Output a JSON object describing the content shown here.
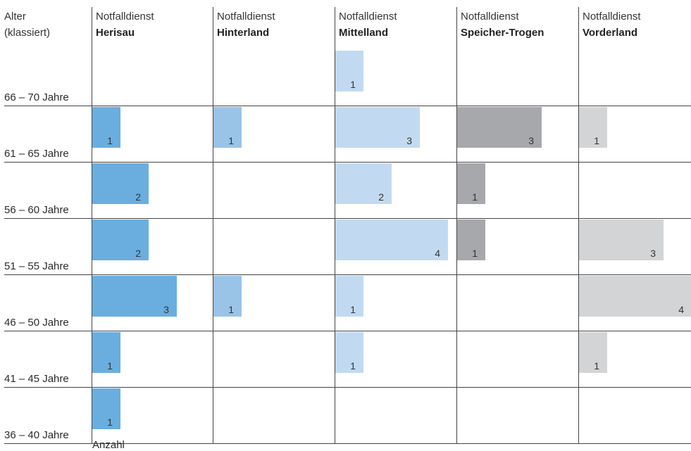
{
  "chart_data": {
    "type": "bar",
    "orientation": "horizontal",
    "layout": "small-multiples",
    "row_header": [
      "Alter",
      "(klassiert)"
    ],
    "x_axis_label": "Anzahl",
    "categories": [
      "66 – 70 Jahre",
      "61 – 65 Jahre",
      "56 – 60 Jahre",
      "51 – 55 Jahre",
      "46 – 50 Jahre",
      "41 – 45 Jahre",
      "36 – 40 Jahre"
    ],
    "xlim": [
      0,
      4
    ],
    "series": [
      {
        "name": "Herisau",
        "header": "Notfalldienst",
        "color": "#6aaedf",
        "values": [
          null,
          1,
          2,
          2,
          3,
          1,
          1
        ]
      },
      {
        "name": "Hinterland",
        "header": "Notfalldienst",
        "color": "#9ac3e8",
        "values": [
          null,
          1,
          null,
          null,
          1,
          null,
          null
        ]
      },
      {
        "name": "Mittelland",
        "header": "Notfalldienst",
        "color": "#c2daf1",
        "values": [
          1,
          3,
          2,
          4,
          1,
          1,
          null
        ]
      },
      {
        "name": "Speicher-Trogen",
        "header": "Notfalldienst",
        "color": "#a7a8ac",
        "values": [
          null,
          3,
          1,
          1,
          null,
          null,
          null
        ]
      },
      {
        "name": "Vorderland",
        "header": "Notfalldienst",
        "color": "#d3d4d6",
        "values": [
          null,
          1,
          null,
          3,
          4,
          1,
          null
        ]
      }
    ]
  }
}
